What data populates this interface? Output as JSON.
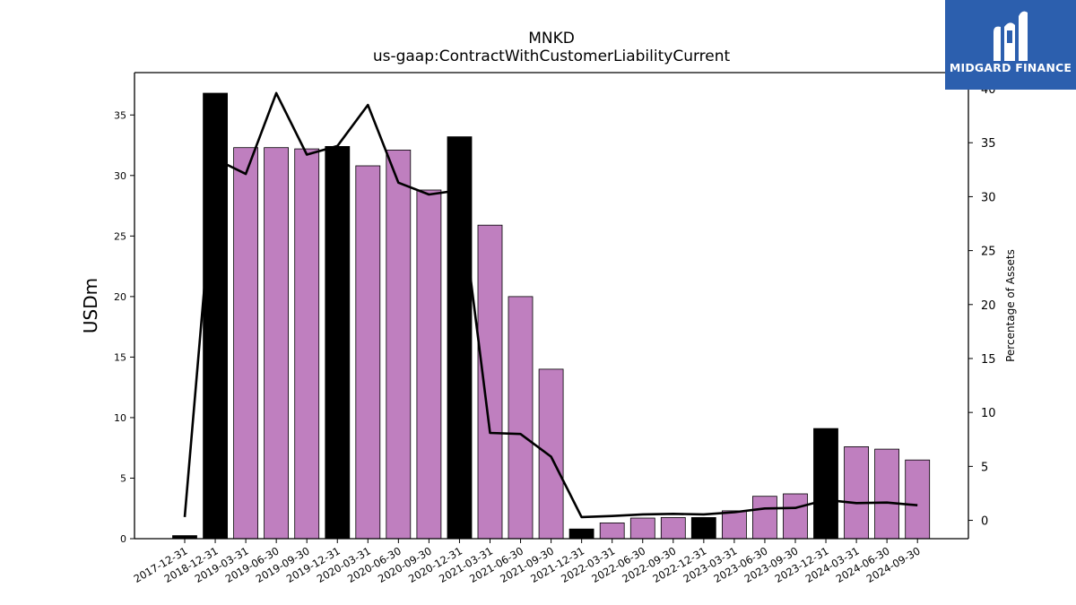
{
  "chart_data": {
    "type": "bar",
    "title": "MNKD",
    "subtitle": "us-gaap:ContractWithCustomerLiabilityCurrent",
    "ylabel": "USDm",
    "y2label": "Percentage of Assets",
    "ylim": [
      0,
      38.5
    ],
    "y2lim": [
      -1.7,
      41.5
    ],
    "yticks": [
      0,
      5,
      10,
      15,
      20,
      25,
      30,
      35
    ],
    "y2ticks": [
      0,
      5,
      10,
      15,
      20,
      25,
      30,
      35,
      40
    ],
    "categories": [
      "2017-12-31",
      "2018-12-31",
      "2019-03-31",
      "2019-06-30",
      "2019-09-30",
      "2019-12-31",
      "2020-03-31",
      "2020-06-30",
      "2020-09-30",
      "2020-12-31",
      "2021-03-31",
      "2021-06-30",
      "2021-09-30",
      "2021-12-31",
      "2022-03-31",
      "2022-06-30",
      "2022-09-30",
      "2022-12-31",
      "2023-03-31",
      "2023-06-30",
      "2023-09-30",
      "2023-12-31",
      "2024-03-31",
      "2024-06-30",
      "2024-09-30"
    ],
    "series": [
      {
        "kind": "bar",
        "values": [
          0.25,
          36.8,
          32.3,
          32.3,
          32.2,
          32.4,
          30.8,
          32.1,
          28.8,
          33.2,
          25.9,
          20.0,
          14.0,
          0.8,
          1.3,
          1.7,
          1.75,
          1.75,
          2.3,
          3.5,
          3.7,
          9.1,
          7.6,
          7.4,
          6.5
        ],
        "annual_year_end": [
          true,
          true,
          false,
          false,
          false,
          true,
          false,
          false,
          false,
          true,
          false,
          false,
          false,
          true,
          false,
          false,
          false,
          true,
          false,
          false,
          false,
          true,
          false,
          false,
          false
        ]
      },
      {
        "kind": "line",
        "axis": "right",
        "values": [
          0.3,
          33.5,
          32.1,
          39.6,
          33.9,
          34.7,
          38.5,
          31.3,
          30.2,
          30.6,
          8.1,
          8.0,
          5.9,
          0.3,
          0.4,
          0.55,
          0.6,
          0.55,
          0.75,
          1.1,
          1.15,
          1.9,
          1.6,
          1.65,
          1.4
        ]
      }
    ],
    "colors": {
      "quarter_bar": "#bf7fbf",
      "annual_bar": "#000000",
      "line": "#000000"
    },
    "grid": false
  },
  "logo": {
    "text": "MIDGARD FINANCE",
    "background": "#2c5fae"
  }
}
